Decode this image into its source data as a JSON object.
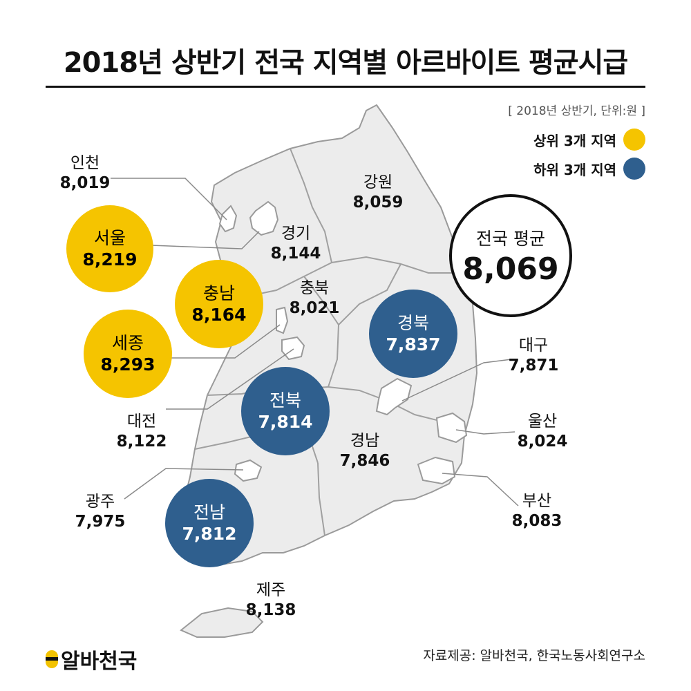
{
  "title": "2018년 상반기 전국 지역별 아르바이트 평균시급",
  "unit_note": "[ 2018년 상반기, 단위:원 ]",
  "legend": {
    "top": {
      "label": "상위 3개 지역",
      "color": "#f5c400"
    },
    "bottom": {
      "label": "하위 3개 지역",
      "color": "#2f5f8e"
    }
  },
  "national_average": {
    "label": "전국 평균",
    "value": "8,069"
  },
  "regions": {
    "incheon": {
      "name": "인천",
      "value": "8,019"
    },
    "seoul": {
      "name": "서울",
      "value": "8,219"
    },
    "chungnam": {
      "name": "충남",
      "value": "8,164"
    },
    "sejong": {
      "name": "세종",
      "value": "8,293"
    },
    "daejeon": {
      "name": "대전",
      "value": "8,122"
    },
    "gwangju": {
      "name": "광주",
      "value": "7,975"
    },
    "jeonnam": {
      "name": "전남",
      "value": "7,812"
    },
    "jeonbuk": {
      "name": "전북",
      "value": "7,814"
    },
    "gangwon": {
      "name": "강원",
      "value": "8,059"
    },
    "gyeonggi": {
      "name": "경기",
      "value": "8,144"
    },
    "chungbuk": {
      "name": "충북",
      "value": "8,021"
    },
    "gyeongbuk": {
      "name": "경북",
      "value": "7,837"
    },
    "gyeongnam": {
      "name": "경남",
      "value": "7,846"
    },
    "daegu": {
      "name": "대구",
      "value": "7,871"
    },
    "ulsan": {
      "name": "울산",
      "value": "8,024"
    },
    "busan": {
      "name": "부산",
      "value": "8,083"
    },
    "jeju": {
      "name": "제주",
      "value": "8,138"
    }
  },
  "colors": {
    "land": "#ececec",
    "border": "#9a9a9a",
    "city": "#ffffff",
    "top": "#f5c400",
    "bottom": "#2f5f8e"
  },
  "brand": "알바천국",
  "source": "자료제공: 알바천국, 한국노동사회연구소"
}
